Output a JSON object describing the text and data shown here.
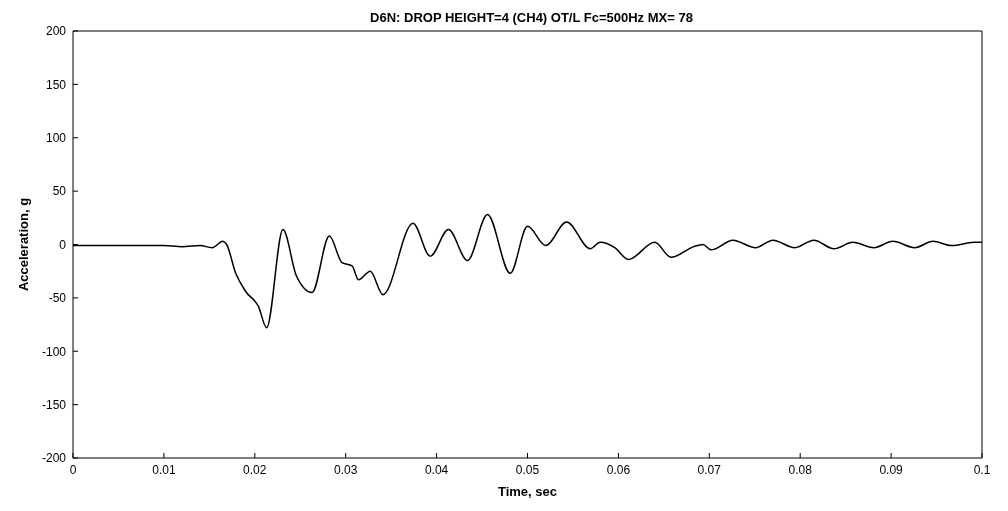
{
  "chart_data": {
    "type": "line",
    "title": "D6N: DROP HEIGHT=4 (CH4) OT/L Fc=500Hz MX=  78",
    "xlabel": "Time, sec",
    "ylabel": "Acceleration, g",
    "x": [
      0,
      0.01,
      0.012,
      0.014,
      0.0153,
      0.0165,
      0.0169,
      0.0179,
      0.019,
      0.0204,
      0.0213,
      0.0231,
      0.0246,
      0.0263,
      0.0282,
      0.0296,
      0.0307,
      0.0314,
      0.0327,
      0.0341,
      0.0374,
      0.0393,
      0.0413,
      0.0434,
      0.0456,
      0.0481,
      0.05,
      0.052,
      0.0543,
      0.0569,
      0.058,
      0.0596,
      0.0611,
      0.064,
      0.0658,
      0.0683,
      0.0693,
      0.0702,
      0.0726,
      0.0751,
      0.077,
      0.0794,
      0.0815,
      0.0837,
      0.0858,
      0.0881,
      0.0902,
      0.0926,
      0.0946,
      0.0967,
      0.0991,
      0.1
    ],
    "series": [
      {
        "color": "#000000",
        "values": [
          -1,
          -1,
          -2,
          -1,
          -3,
          3,
          0,
          -27,
          -44,
          -58,
          -78,
          14,
          -30,
          -45,
          8,
          -17,
          -20,
          -33,
          -25,
          -47,
          20,
          -11,
          14,
          -15,
          28,
          -27,
          17,
          -1,
          21,
          -4,
          2,
          -3,
          -14,
          2,
          -12,
          -2,
          0,
          -5,
          4,
          -3,
          4,
          -3,
          4,
          -4,
          2,
          -3,
          3,
          -3,
          3,
          -1,
          2,
          2
        ]
      }
    ],
    "xlim": [
      0,
      0.1
    ],
    "xticks": [
      0,
      0.01,
      0.02,
      0.03,
      0.04,
      0.05,
      0.06,
      0.07,
      0.08,
      0.09,
      0.1
    ],
    "ylim": [
      -200,
      200
    ],
    "yticks": [
      -200,
      -150,
      -100,
      -50,
      0,
      50,
      100,
      150,
      200
    ],
    "grid": false,
    "legend": false,
    "marker": "none",
    "line_style": "solid"
  }
}
